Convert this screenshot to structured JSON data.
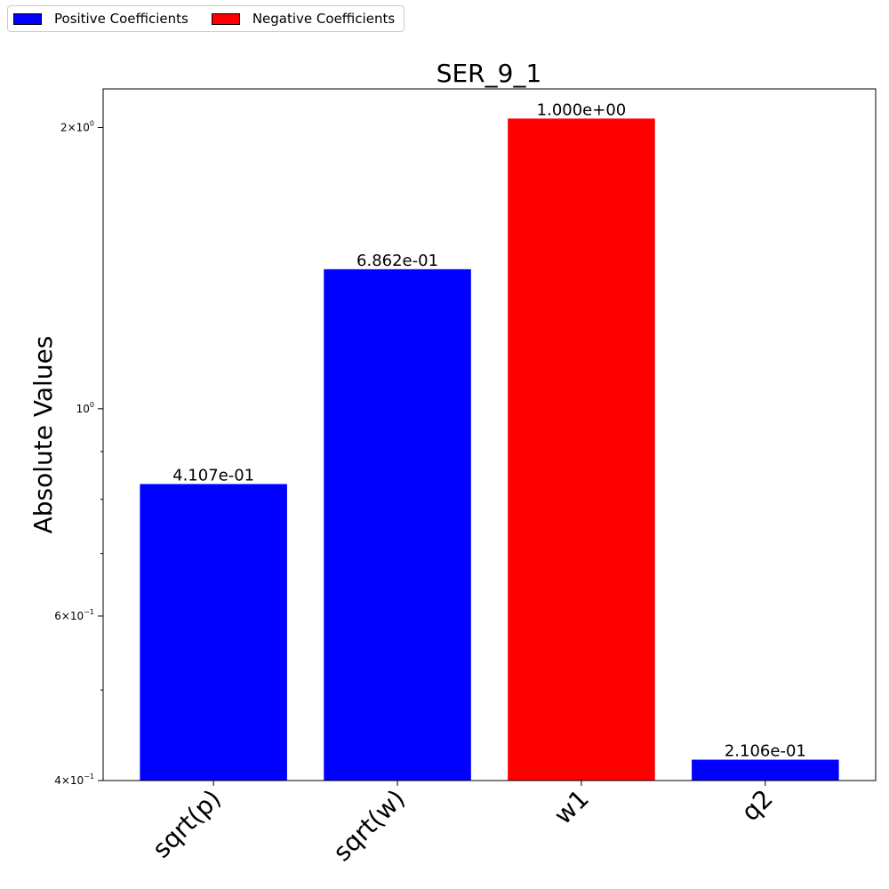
{
  "legend": {
    "positive_label": "Positive Coefficients",
    "negative_label": "Negative Coefficients",
    "positive_color": "#0000ff",
    "negative_color": "#ff0000"
  },
  "chart_data": {
    "type": "bar",
    "title": "SER_9_1",
    "xlabel": "",
    "ylabel": "Absolute Values",
    "yscale": "log",
    "ylim": [
      0.4,
      2.2
    ],
    "categories": [
      "sqrt(p)",
      "sqrt(w)",
      "w1",
      "q2"
    ],
    "values": [
      0.8307,
      1.4106,
      2.0449,
      0.4211
    ],
    "bar_labels": [
      "4.107e-01",
      "6.862e-01",
      "1.000e+00",
      "2.106e-01"
    ],
    "signs": [
      "positive",
      "positive",
      "negative",
      "positive"
    ],
    "yticks": [
      {
        "value": 2,
        "label": "2×10",
        "exp": "0"
      },
      {
        "value": 1,
        "label": "10",
        "exp": "0"
      },
      {
        "value": 0.6,
        "label": "6×10",
        "exp": "−1"
      },
      {
        "value": 0.4,
        "label": "4×10",
        "exp": "−1"
      }
    ],
    "minor_yticks": [
      0.5,
      0.7,
      0.8,
      0.9
    ],
    "grid": false,
    "legend_position": "top-left outside"
  }
}
